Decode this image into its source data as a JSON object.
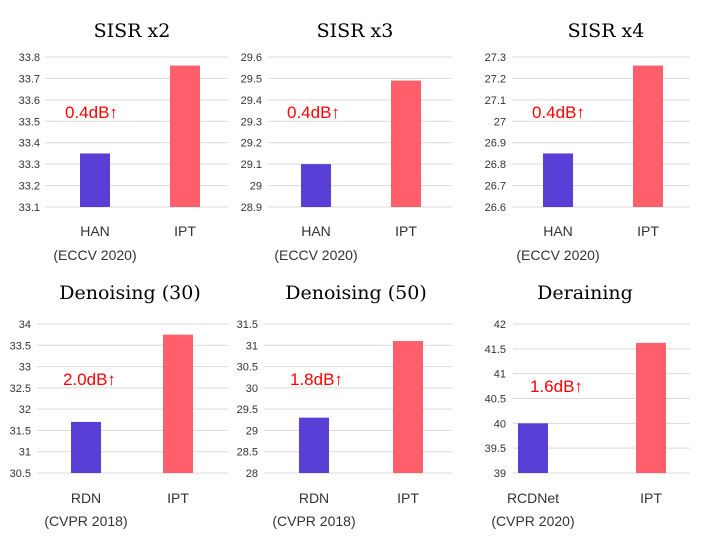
{
  "chart_data": [
    {
      "type": "bar",
      "title": "SISR x2",
      "categories": [
        "HAN",
        "IPT"
      ],
      "category_subtitles": [
        "(ECCV 2020)",
        ""
      ],
      "values": [
        33.35,
        33.76
      ],
      "colors": [
        "#5a3fd6",
        "#ff5f6a"
      ],
      "ylim": [
        33.1,
        33.8
      ],
      "yticks": [
        "33.1",
        "33.2",
        "33.3",
        "33.4",
        "33.5",
        "33.6",
        "33.7",
        "33.8"
      ],
      "annotation": "0.4dB↑",
      "grid": true
    },
    {
      "type": "bar",
      "title": "SISR x3",
      "categories": [
        "HAN",
        "IPT"
      ],
      "category_subtitles": [
        "(ECCV 2020)",
        ""
      ],
      "values": [
        29.1,
        29.49
      ],
      "colors": [
        "#5a3fd6",
        "#ff5f6a"
      ],
      "ylim": [
        28.9,
        29.6
      ],
      "yticks": [
        "28.9",
        "29",
        "29.1",
        "29.2",
        "29.3",
        "29.4",
        "29.5",
        "29.6"
      ],
      "annotation": "0.4dB↑",
      "grid": true
    },
    {
      "type": "bar",
      "title": "SISR x4",
      "categories": [
        "HAN",
        "IPT"
      ],
      "category_subtitles": [
        "(ECCV 2020)",
        ""
      ],
      "values": [
        26.85,
        27.26
      ],
      "colors": [
        "#5a3fd6",
        "#ff5f6a"
      ],
      "ylim": [
        26.6,
        27.3
      ],
      "yticks": [
        "26.6",
        "26.7",
        "26.8",
        "26.9",
        "27",
        "27.1",
        "27.2",
        "27.3"
      ],
      "annotation": "0.4dB↑",
      "grid": true
    },
    {
      "type": "bar",
      "title": "Denoising (30)",
      "categories": [
        "RDN",
        "IPT"
      ],
      "category_subtitles": [
        "(CVPR 2018)",
        ""
      ],
      "values": [
        31.7,
        33.75
      ],
      "colors": [
        "#5a3fd6",
        "#ff5f6a"
      ],
      "ylim": [
        30.5,
        34
      ],
      "yticks": [
        "30.5",
        "31",
        "31.5",
        "32",
        "32.5",
        "33",
        "33.5",
        "34"
      ],
      "annotation": "2.0dB↑",
      "grid": true
    },
    {
      "type": "bar",
      "title": "Denoising (50)",
      "categories": [
        "RDN",
        "IPT"
      ],
      "category_subtitles": [
        "(CVPR 2018)",
        ""
      ],
      "values": [
        29.3,
        31.1
      ],
      "colors": [
        "#5a3fd6",
        "#ff5f6a"
      ],
      "ylim": [
        28,
        31.5
      ],
      "yticks": [
        "28",
        "28.5",
        "29",
        "29.5",
        "30",
        "30.5",
        "31",
        "31.5"
      ],
      "annotation": "1.8dB↑",
      "grid": true
    },
    {
      "type": "bar",
      "title": "Deraining",
      "categories": [
        "RCDNet",
        "IPT"
      ],
      "category_subtitles": [
        "(CVPR 2020)",
        ""
      ],
      "values": [
        40.0,
        41.62
      ],
      "colors": [
        "#5a3fd6",
        "#ff5f6a"
      ],
      "ylim": [
        39,
        42
      ],
      "yticks": [
        "39",
        "39.5",
        "40",
        "40.5",
        "41",
        "41.5",
        "42"
      ],
      "annotation": "1.6dB↑",
      "grid": true
    }
  ]
}
